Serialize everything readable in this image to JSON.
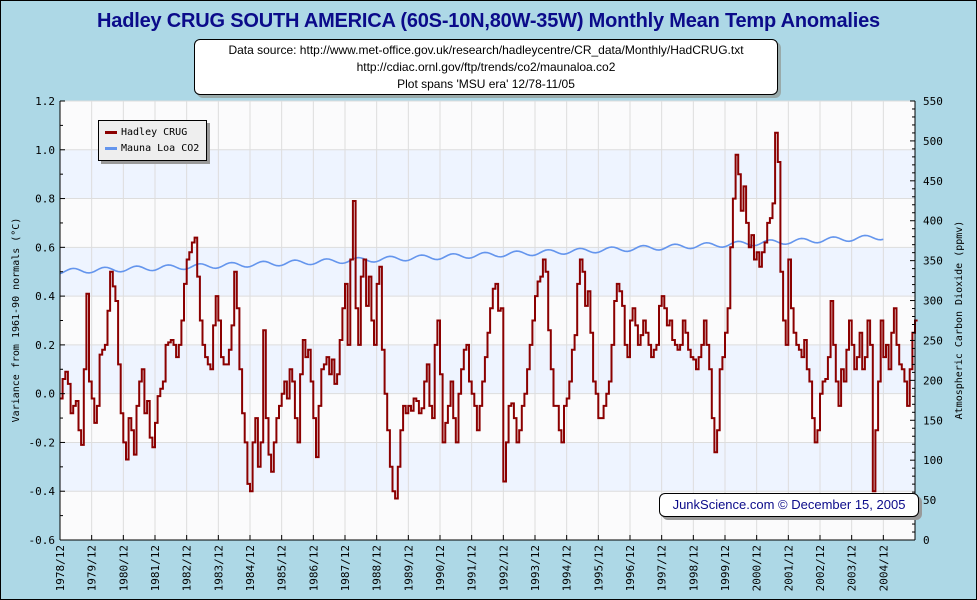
{
  "chart_data": {
    "type": "line",
    "title": "Hadley CRUG SOUTH AMERICA (60S-10N,80W-35W) Monthly Mean Temp Anomalies",
    "subtitle_lines": [
      "Data source: http://www.met-office.gov.uk/research/hadleycentre/CR_data/Monthly/HadCRUG.txt",
      "http://cdiac.ornl.gov/ftp/trends/co2/maunaloa.co2",
      "Plot spans 'MSU era' 12/78-11/05"
    ],
    "credit": "JunkScience.com © December 15, 2005",
    "ylabel": "Variance from 1961-90 normals (°C)",
    "y2label": "Atmospheric Carbon Dioxide (ppmv)",
    "ylim": [
      -0.6,
      1.2
    ],
    "y2lim": [
      0,
      550
    ],
    "yticks": [
      "1.2",
      "1.0",
      "0.8",
      "0.6",
      "0.4",
      "0.2",
      "0.0",
      "-0.2",
      "-0.4",
      "-0.6"
    ],
    "ytick_values": [
      1.2,
      1.0,
      0.8,
      0.6,
      0.4,
      0.2,
      0.0,
      -0.2,
      -0.4,
      -0.6
    ],
    "y2ticks": [
      "550",
      "500",
      "450",
      "400",
      "350",
      "300",
      "250",
      "200",
      "150",
      "100",
      "50",
      "0"
    ],
    "y2tick_values": [
      550,
      500,
      450,
      400,
      350,
      300,
      250,
      200,
      150,
      100,
      50,
      0
    ],
    "xticks": [
      "1978/12",
      "1979/12",
      "1980/12",
      "1981/12",
      "1982/12",
      "1983/12",
      "1984/12",
      "1985/12",
      "1986/12",
      "1987/12",
      "1988/12",
      "1989/12",
      "1990/12",
      "1991/12",
      "1992/12",
      "1993/12",
      "1994/12",
      "1995/12",
      "1996/12",
      "1997/12",
      "1998/12",
      "1999/12",
      "2000/12",
      "2001/12",
      "2002/12",
      "2003/12",
      "2004/12"
    ],
    "x_start": "1978/12",
    "x_end": "2005/11",
    "grid": true,
    "legend_position": "top-left",
    "series": [
      {
        "name": "Hadley CRUG",
        "color": "#8b0000",
        "axis": "left",
        "start": "1978/12",
        "values": [
          -0.02,
          0.06,
          0.09,
          0.04,
          -0.08,
          -0.05,
          -0.03,
          -0.15,
          -0.21,
          0.1,
          0.41,
          0.05,
          -0.02,
          -0.12,
          -0.05,
          0.16,
          0.18,
          0.2,
          0.34,
          0.5,
          0.44,
          0.38,
          0.12,
          -0.08,
          -0.2,
          -0.27,
          -0.1,
          -0.15,
          -0.25,
          -0.05,
          0.05,
          0.1,
          -0.08,
          -0.03,
          -0.18,
          -0.22,
          -0.12,
          -0.01,
          0.02,
          0.05,
          0.2,
          0.21,
          0.22,
          0.2,
          0.15,
          0.2,
          0.3,
          0.45,
          0.55,
          0.58,
          0.62,
          0.64,
          0.48,
          0.3,
          0.2,
          0.15,
          0.12,
          0.1,
          0.28,
          0.4,
          0.3,
          0.15,
          0.12,
          0.12,
          0.18,
          0.28,
          0.5,
          0.35,
          0.1,
          -0.08,
          -0.2,
          -0.37,
          -0.4,
          -0.2,
          -0.1,
          -0.3,
          -0.2,
          0.26,
          -0.1,
          -0.25,
          -0.32,
          -0.2,
          -0.1,
          -0.05,
          0.0,
          0.05,
          -0.02,
          0.1,
          0.05,
          -0.1,
          -0.2,
          0.08,
          0.22,
          0.15,
          0.18,
          0.05,
          -0.1,
          -0.26,
          -0.05,
          0.1,
          0.12,
          0.15,
          0.08,
          0.14,
          0.04,
          0.08,
          0.22,
          0.35,
          0.45,
          0.2,
          0.55,
          0.79,
          0.35,
          0.2,
          0.48,
          0.55,
          0.36,
          0.48,
          0.3,
          0.2,
          0.45,
          0.52,
          0.18,
          0.0,
          -0.15,
          -0.3,
          -0.4,
          -0.43,
          -0.3,
          -0.15,
          -0.05,
          -0.08,
          -0.05,
          -0.07,
          -0.02,
          -0.03,
          -0.08,
          -0.06,
          0.05,
          0.12,
          -0.05,
          -0.1,
          0.2,
          0.3,
          0.08,
          -0.2,
          -0.12,
          -0.05,
          0.05,
          -0.1,
          -0.2,
          0.0,
          0.1,
          0.18,
          0.2,
          0.05,
          0.0,
          -0.05,
          -0.15,
          -0.05,
          0.05,
          0.15,
          0.25,
          0.35,
          0.43,
          0.45,
          0.34,
          0.35,
          -0.36,
          -0.2,
          -0.05,
          -0.04,
          -0.1,
          -0.2,
          -0.15,
          -0.05,
          0.0,
          0.1,
          0.2,
          0.3,
          0.4,
          0.46,
          0.48,
          0.55,
          0.5,
          0.26,
          0.1,
          -0.05,
          -0.05,
          -0.15,
          -0.2,
          -0.05,
          -0.02,
          0.05,
          0.18,
          0.24,
          0.45,
          0.55,
          0.5,
          0.36,
          0.42,
          0.25,
          0.05,
          0.0,
          -0.1,
          -0.1,
          -0.05,
          0.0,
          0.05,
          0.2,
          0.38,
          0.45,
          0.42,
          0.36,
          0.2,
          0.15,
          0.3,
          0.35,
          0.28,
          0.2,
          0.24,
          0.3,
          0.25,
          0.2,
          0.15,
          0.18,
          0.2,
          0.36,
          0.4,
          0.35,
          0.28,
          0.3,
          0.22,
          0.2,
          0.18,
          0.2,
          0.3,
          0.25,
          0.18,
          0.15,
          0.14,
          0.1,
          0.15,
          0.2,
          0.3,
          0.2,
          0.1,
          -0.1,
          -0.24,
          -0.15,
          0.1,
          0.15,
          0.25,
          0.35,
          0.6,
          0.8,
          0.98,
          0.9,
          0.75,
          0.85,
          0.7,
          0.6,
          0.65,
          0.55,
          0.58,
          0.52,
          0.58,
          0.62,
          0.7,
          0.72,
          0.78,
          1.07,
          0.95,
          0.5,
          0.3,
          0.2,
          0.55,
          0.35,
          0.25,
          0.2,
          0.18,
          0.15,
          0.22,
          0.1,
          0.05,
          -0.1,
          -0.2,
          -0.15,
          0.0,
          0.05,
          0.06,
          0.15,
          0.38,
          0.2,
          0.05,
          -0.05,
          0.1,
          0.05,
          0.18,
          0.3,
          0.2,
          0.1,
          0.15,
          0.25,
          0.1,
          0.15,
          0.3,
          0.2,
          -0.4,
          -0.15,
          0.05,
          0.3,
          0.15,
          0.2,
          0.1,
          0.25,
          0.35,
          0.2,
          0.12,
          0.1,
          0.05,
          -0.05,
          0.1,
          0.25,
          0.3
        ]
      },
      {
        "name": "Mauna Loa CO2",
        "color": "#6495ed",
        "axis": "right",
        "start": "1978/12",
        "values_note": "monthly ppmv, 1978/12 to 2004/12",
        "trend_start": 336.5,
        "trend_end": 379.5,
        "seasonal_amplitude": 3.2,
        "n_months": 313
      }
    ]
  },
  "legend": {
    "items": [
      {
        "label": "Hadley CRUG",
        "color": "#8b0000"
      },
      {
        "label": "Mauna Loa CO2",
        "color": "#6495ed"
      }
    ]
  }
}
